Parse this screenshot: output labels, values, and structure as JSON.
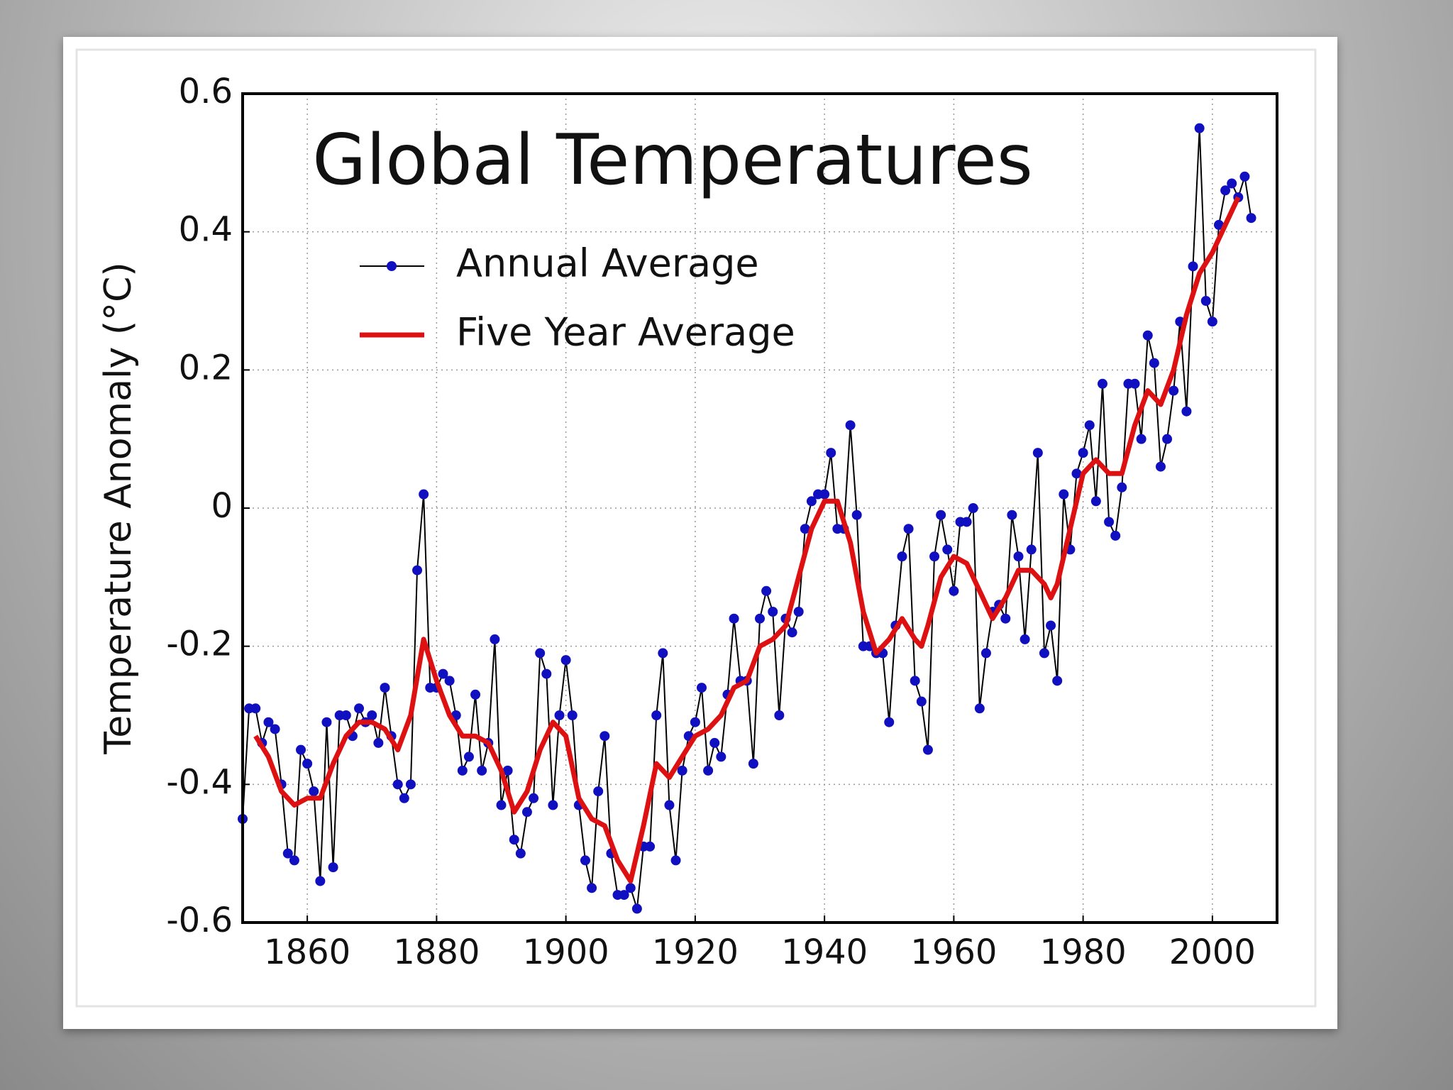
{
  "chart_data": {
    "type": "line",
    "title": "Global Temperatures",
    "ylabel": "Temperature Anomaly (°C)",
    "xlim": [
      1850,
      2010
    ],
    "ylim": [
      -0.6,
      0.6
    ],
    "xticks": [
      1860,
      1880,
      1900,
      1920,
      1940,
      1960,
      1980,
      2000
    ],
    "yticks": [
      0.6,
      0.4,
      0.2,
      0,
      -0.2,
      -0.4,
      -0.6
    ],
    "grid": true,
    "legend": "upper left",
    "series": [
      {
        "name": "Annual Average",
        "color": "#1010c0",
        "line_color": "#000000",
        "marker": true,
        "x": [
          1850,
          1851,
          1852,
          1853,
          1854,
          1855,
          1856,
          1857,
          1858,
          1859,
          1860,
          1861,
          1862,
          1863,
          1864,
          1865,
          1866,
          1867,
          1868,
          1869,
          1870,
          1871,
          1872,
          1873,
          1874,
          1875,
          1876,
          1877,
          1878,
          1879,
          1880,
          1881,
          1882,
          1883,
          1884,
          1885,
          1886,
          1887,
          1888,
          1889,
          1890,
          1891,
          1892,
          1893,
          1894,
          1895,
          1896,
          1897,
          1898,
          1899,
          1900,
          1901,
          1902,
          1903,
          1904,
          1905,
          1906,
          1907,
          1908,
          1909,
          1910,
          1911,
          1912,
          1913,
          1914,
          1915,
          1916,
          1917,
          1918,
          1919,
          1920,
          1921,
          1922,
          1923,
          1924,
          1925,
          1926,
          1927,
          1928,
          1929,
          1930,
          1931,
          1932,
          1933,
          1934,
          1935,
          1936,
          1937,
          1938,
          1939,
          1940,
          1941,
          1942,
          1943,
          1944,
          1945,
          1946,
          1947,
          1948,
          1949,
          1950,
          1951,
          1952,
          1953,
          1954,
          1955,
          1956,
          1957,
          1958,
          1959,
          1960,
          1961,
          1962,
          1963,
          1964,
          1965,
          1966,
          1967,
          1968,
          1969,
          1970,
          1971,
          1972,
          1973,
          1974,
          1975,
          1976,
          1977,
          1978,
          1979,
          1980,
          1981,
          1982,
          1983,
          1984,
          1985,
          1986,
          1987,
          1988,
          1989,
          1990,
          1991,
          1992,
          1993,
          1994,
          1995,
          1996,
          1997,
          1998,
          1999,
          2000,
          2001,
          2002,
          2003,
          2004,
          2005,
          2006
        ],
        "values": [
          -0.45,
          -0.29,
          -0.29,
          -0.34,
          -0.31,
          -0.32,
          -0.4,
          -0.5,
          -0.51,
          -0.35,
          -0.37,
          -0.41,
          -0.54,
          -0.31,
          -0.52,
          -0.3,
          -0.3,
          -0.33,
          -0.29,
          -0.31,
          -0.3,
          -0.34,
          -0.26,
          -0.33,
          -0.4,
          -0.42,
          -0.4,
          -0.09,
          0.02,
          -0.26,
          -0.26,
          -0.24,
          -0.25,
          -0.3,
          -0.38,
          -0.36,
          -0.27,
          -0.38,
          -0.34,
          -0.19,
          -0.43,
          -0.38,
          -0.48,
          -0.5,
          -0.44,
          -0.42,
          -0.21,
          -0.24,
          -0.43,
          -0.3,
          -0.22,
          -0.3,
          -0.43,
          -0.51,
          -0.55,
          -0.41,
          -0.33,
          -0.5,
          -0.56,
          -0.56,
          -0.55,
          -0.58,
          -0.49,
          -0.49,
          -0.3,
          -0.21,
          -0.43,
          -0.51,
          -0.38,
          -0.33,
          -0.31,
          -0.26,
          -0.38,
          -0.34,
          -0.36,
          -0.27,
          -0.16,
          -0.25,
          -0.25,
          -0.37,
          -0.16,
          -0.12,
          -0.15,
          -0.3,
          -0.16,
          -0.18,
          -0.15,
          -0.03,
          0.01,
          0.02,
          0.02,
          0.08,
          -0.03,
          -0.03,
          0.12,
          -0.01,
          -0.2,
          -0.2,
          -0.21,
          -0.21,
          -0.31,
          -0.17,
          -0.07,
          -0.03,
          -0.25,
          -0.28,
          -0.35,
          -0.07,
          -0.01,
          -0.06,
          -0.12,
          -0.02,
          -0.02,
          0.0,
          -0.29,
          -0.21,
          -0.15,
          -0.14,
          -0.16,
          -0.01,
          -0.07,
          -0.19,
          -0.06,
          0.08,
          -0.21,
          -0.17,
          -0.25,
          0.02,
          -0.06,
          0.05,
          0.08,
          0.12,
          0.01,
          0.18,
          -0.02,
          -0.04,
          0.03,
          0.18,
          0.18,
          0.1,
          0.25,
          0.21,
          0.06,
          0.1,
          0.17,
          0.27,
          0.14,
          0.35,
          0.55,
          0.3,
          0.27,
          0.41,
          0.46,
          0.47,
          0.45,
          0.48,
          0.42
        ]
      },
      {
        "name": "Five Year Average",
        "color": "#dd1111",
        "marker": false,
        "x": [
          1852,
          1854,
          1856,
          1858,
          1860,
          1862,
          1864,
          1866,
          1868,
          1870,
          1872,
          1874,
          1876,
          1878,
          1880,
          1882,
          1884,
          1886,
          1888,
          1890,
          1892,
          1894,
          1896,
          1898,
          1900,
          1902,
          1904,
          1906,
          1908,
          1910,
          1912,
          1914,
          1916,
          1918,
          1920,
          1922,
          1924,
          1926,
          1928,
          1930,
          1932,
          1934,
          1936,
          1938,
          1940,
          1942,
          1944,
          1946,
          1948,
          1950,
          1952,
          1954,
          1955,
          1956,
          1958,
          1960,
          1962,
          1964,
          1966,
          1968,
          1970,
          1972,
          1974,
          1975,
          1976,
          1978,
          1980,
          1982,
          1984,
          1986,
          1988,
          1990,
          1992,
          1994,
          1996,
          1998,
          2000,
          2002,
          2004
        ],
        "values": [
          -0.33,
          -0.36,
          -0.41,
          -0.43,
          -0.42,
          -0.42,
          -0.37,
          -0.33,
          -0.31,
          -0.31,
          -0.32,
          -0.35,
          -0.3,
          -0.19,
          -0.25,
          -0.3,
          -0.33,
          -0.33,
          -0.34,
          -0.38,
          -0.44,
          -0.41,
          -0.35,
          -0.31,
          -0.33,
          -0.42,
          -0.45,
          -0.46,
          -0.51,
          -0.54,
          -0.46,
          -0.37,
          -0.39,
          -0.36,
          -0.33,
          -0.32,
          -0.3,
          -0.26,
          -0.25,
          -0.2,
          -0.19,
          -0.17,
          -0.1,
          -0.03,
          0.01,
          0.01,
          -0.05,
          -0.15,
          -0.21,
          -0.19,
          -0.16,
          -0.19,
          -0.2,
          -0.17,
          -0.1,
          -0.07,
          -0.08,
          -0.12,
          -0.16,
          -0.13,
          -0.09,
          -0.09,
          -0.11,
          -0.13,
          -0.11,
          -0.03,
          0.05,
          0.07,
          0.05,
          0.05,
          0.12,
          0.17,
          0.15,
          0.2,
          0.28,
          0.34,
          0.37,
          0.41,
          0.45
        ]
      }
    ]
  }
}
